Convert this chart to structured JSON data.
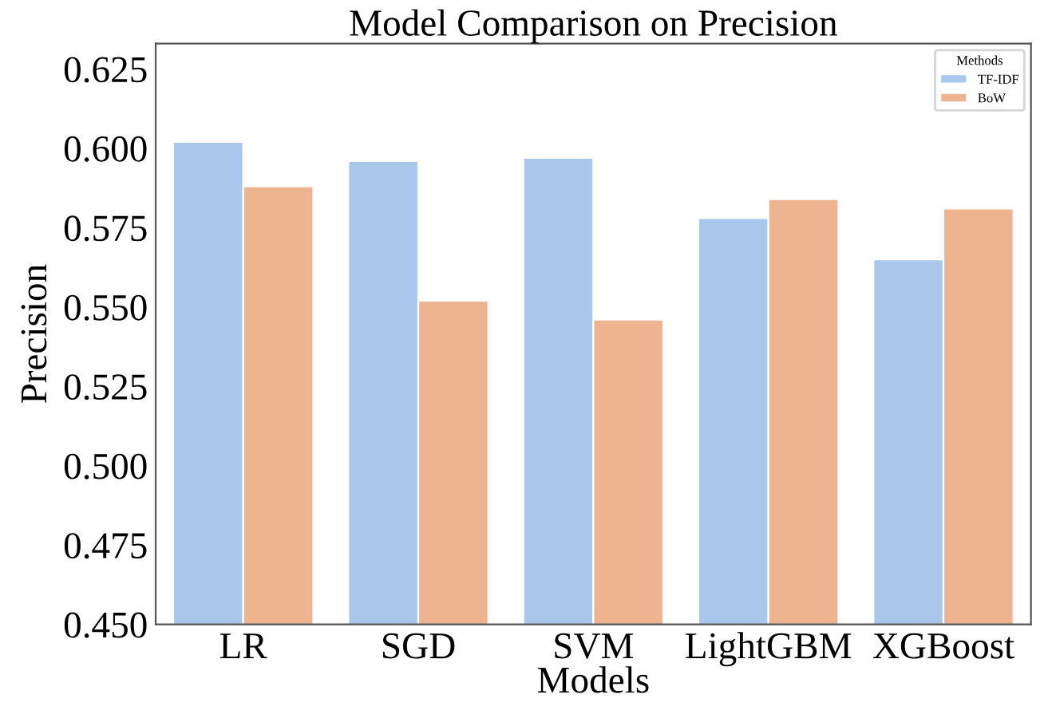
{
  "chart_data": {
    "type": "bar",
    "title": "Model Comparison on Precision",
    "xlabel": "Models",
    "ylabel": "Precision",
    "legend_title": "Methods",
    "categories": [
      "LR",
      "SGD",
      "SVM",
      "LightGBM",
      "XGBoost"
    ],
    "series": [
      {
        "name": "TF-IDF",
        "color": "#a9c7ea",
        "values": [
          0.602,
          0.596,
          0.597,
          0.578,
          0.565
        ]
      },
      {
        "name": "BoW",
        "color": "#eeb48f",
        "values": [
          0.588,
          0.552,
          0.546,
          0.584,
          0.581
        ]
      }
    ],
    "ylim": [
      0.45,
      0.633
    ],
    "yticks": [
      {
        "value": 0.45,
        "label": "0.450"
      },
      0.475,
      {
        "value": 0.5,
        "label": "0.500"
      },
      0.525,
      {
        "value": 0.55,
        "label": "0.550"
      },
      0.575,
      {
        "value": 0.6,
        "label": "0.600"
      },
      0.625
    ],
    "grid": false,
    "legend": "top right"
  }
}
